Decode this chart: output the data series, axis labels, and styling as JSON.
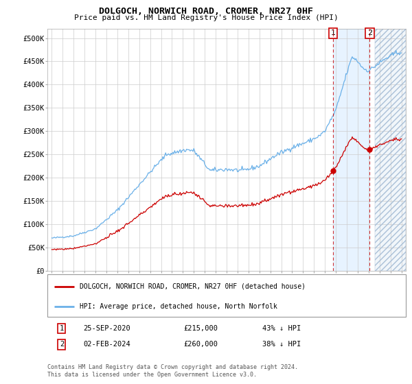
{
  "title": "DOLGOCH, NORWICH ROAD, CROMER, NR27 0HF",
  "subtitle": "Price paid vs. HM Land Registry's House Price Index (HPI)",
  "legend_line1": "DOLGOCH, NORWICH ROAD, CROMER, NR27 0HF (detached house)",
  "legend_line2": "HPI: Average price, detached house, North Norfolk",
  "note1_date": "25-SEP-2020",
  "note1_price": "£215,000",
  "note1_pct": "43% ↓ HPI",
  "note2_date": "02-FEB-2024",
  "note2_price": "£260,000",
  "note2_pct": "38% ↓ HPI",
  "footer": "Contains HM Land Registry data © Crown copyright and database right 2024.\nThis data is licensed under the Open Government Licence v3.0.",
  "hpi_color": "#6ab0e8",
  "price_color": "#cc0000",
  "vline_color": "#cc0000",
  "shade_color": "#ddeeff",
  "marker1_x_year": 2020.75,
  "marker2_x_year": 2024.09,
  "marker1_price": 215000,
  "marker2_price": 260000,
  "ylim": [
    0,
    520000
  ],
  "xlim_left": 1994.6,
  "xlim_right": 2027.4,
  "yticks": [
    0,
    50000,
    100000,
    150000,
    200000,
    250000,
    300000,
    350000,
    400000,
    450000,
    500000
  ]
}
